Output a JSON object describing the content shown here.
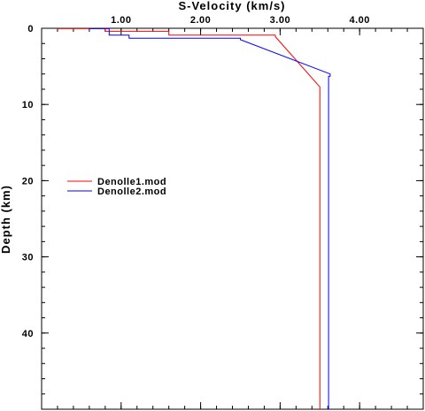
{
  "chart_data": {
    "type": "line",
    "title": "",
    "xlabel": "S-Velocity (km/s)",
    "ylabel": "Depth (km)",
    "xlim": [
      0.0,
      4.8
    ],
    "ylim": [
      0,
      50
    ],
    "y_inverted": true,
    "x_ticks": [
      1.0,
      2.0,
      3.0,
      4.0
    ],
    "x_tick_labels": [
      "1.00",
      "2.00",
      "3.00",
      "4.00"
    ],
    "y_ticks": [
      0,
      10,
      20,
      30,
      40
    ],
    "y_tick_labels": [
      "0",
      "10",
      "20",
      "30",
      "40"
    ],
    "legend_position": "left-middle",
    "grid": false,
    "series": [
      {
        "name": "Denolle1.mod",
        "color": "#ff0000",
        "x": [
          0.2,
          0.2,
          0.8,
          0.8,
          1.6,
          1.6,
          2.94,
          2.94,
          3.5,
          3.5
        ],
        "y": [
          0,
          0.05,
          0.05,
          0.4,
          0.4,
          0.9,
          0.9,
          1.1,
          7.7,
          50
        ]
      },
      {
        "name": "Denolle2.mod",
        "color": "#0000ff",
        "x": [
          0.6,
          0.6,
          0.85,
          0.85,
          1.1,
          1.1,
          2.5,
          2.5,
          3.63,
          3.63,
          3.61,
          3.61
        ],
        "y": [
          0,
          0.05,
          0.05,
          0.9,
          0.9,
          1.3,
          1.3,
          1.5,
          6.0,
          6.3,
          6.3,
          50
        ]
      }
    ]
  }
}
